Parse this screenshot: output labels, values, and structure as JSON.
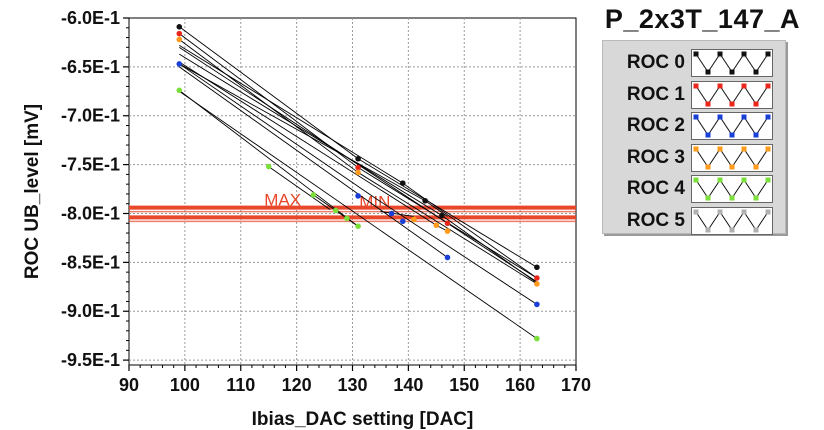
{
  "window": {
    "title": "P_2x3T_147_A"
  },
  "chart_data": {
    "type": "line",
    "title": "P_2x3T_147_A",
    "xlabel": "Ibias_DAC setting [DAC]",
    "ylabel": "ROC UB_level [mV]",
    "xlim": [
      90,
      170
    ],
    "ylim": [
      -0.955,
      -0.6
    ],
    "x_ticks": [
      "90",
      "100",
      "110",
      "120",
      "130",
      "140",
      "150",
      "160",
      "170"
    ],
    "y_ticks": [
      "-6.0E-1",
      "-6.5E-1",
      "-7.0E-1",
      "-7.5E-1",
      "-8.0E-1",
      "-8.5E-1",
      "-9.0E-1",
      "-9.5E-1"
    ],
    "reference_lines": [
      {
        "label": "MAX",
        "y": -0.794,
        "color": "#e8472a"
      },
      {
        "label": "MIN",
        "y": -0.804,
        "color": "#e8472a"
      }
    ],
    "series": [
      {
        "name": "ROC 0",
        "color": "#111111",
        "segments": [
          [
            [
              99,
              -0.609
            ],
            [
              131,
              -0.744
            ]
          ],
          [
            [
              99,
              -0.628
            ],
            [
              139,
              -0.769
            ]
          ],
          [
            [
              99,
              -0.637
            ],
            [
              146,
              -0.802
            ]
          ],
          [
            [
              99,
              -0.647
            ],
            [
              143,
              -0.787
            ]
          ],
          [
            [
              131,
              -0.744
            ],
            [
              163,
              -0.855
            ]
          ],
          [
            [
              139,
              -0.769
            ],
            [
              163,
              -0.866
            ]
          ],
          [
            [
              146,
              -0.802
            ],
            [
              163,
              -0.871
            ]
          ],
          [
            [
              143,
              -0.787
            ],
            [
              147,
              -0.803
            ]
          ]
        ]
      },
      {
        "name": "ROC 1",
        "color": "#e8271a",
        "segments": [
          [
            [
              99,
              -0.616
            ],
            [
              131,
              -0.753
            ]
          ],
          [
            [
              99,
              -0.63
            ],
            [
              147,
              -0.81
            ]
          ],
          [
            [
              131,
              -0.753
            ],
            [
              163,
              -0.866
            ]
          ],
          [
            [
              147,
              -0.81
            ],
            [
              163,
              -0.87
            ]
          ]
        ]
      },
      {
        "name": "ROC 2",
        "color": "#1a3fd8",
        "segments": [
          [
            [
              99,
              -0.647
            ],
            [
              134,
              -0.784
            ]
          ],
          [
            [
              99,
              -0.65
            ],
            [
              147,
              -0.845
            ]
          ],
          [
            [
              134,
              -0.784
            ],
            [
              163,
              -0.893
            ]
          ],
          [
            [
              135,
              -0.798
            ],
            [
              141,
              -0.803
            ]
          ]
        ]
      },
      {
        "name": "ROC 3",
        "color": "#ff9a1a",
        "segments": [
          [
            [
              99,
              -0.622
            ],
            [
              131,
              -0.758
            ]
          ],
          [
            [
              99,
              -0.645
            ],
            [
              145,
              -0.812
            ]
          ],
          [
            [
              131,
              -0.758
            ],
            [
              163,
              -0.872
            ]
          ],
          [
            [
              145,
              -0.812
            ],
            [
              147,
              -0.818
            ]
          ]
        ]
      },
      {
        "name": "ROC 4",
        "color": "#7adf3a",
        "segments": [
          [
            [
              99,
              -0.674
            ],
            [
              131,
              -0.813
            ]
          ],
          [
            [
              99,
              -0.675
            ],
            [
              163,
              -0.928
            ]
          ],
          [
            [
              115,
              -0.752
            ],
            [
              126,
              -0.796
            ]
          ],
          [
            [
              123,
              -0.781
            ],
            [
              131,
              -0.813
            ]
          ]
        ]
      },
      {
        "name": "ROC 5",
        "color": "#b0b0b0",
        "segments": []
      }
    ],
    "points": [
      {
        "series": "ROC 0",
        "xy": [
          [
            99,
            -0.609
          ],
          [
            131,
            -0.744
          ],
          [
            139,
            -0.769
          ],
          [
            143,
            -0.787
          ],
          [
            146,
            -0.802
          ],
          [
            163,
            -0.855
          ]
        ]
      },
      {
        "series": "ROC 1",
        "xy": [
          [
            99,
            -0.616
          ],
          [
            131,
            -0.753
          ],
          [
            147,
            -0.81
          ],
          [
            163,
            -0.866
          ]
        ]
      },
      {
        "series": "ROC 2",
        "xy": [
          [
            99,
            -0.647
          ],
          [
            131,
            -0.782
          ],
          [
            137,
            -0.8
          ],
          [
            139,
            -0.808
          ],
          [
            147,
            -0.845
          ],
          [
            163,
            -0.893
          ]
        ]
      },
      {
        "series": "ROC 3",
        "xy": [
          [
            99,
            -0.622
          ],
          [
            131,
            -0.758
          ],
          [
            141,
            -0.806
          ],
          [
            145,
            -0.812
          ],
          [
            147,
            -0.818
          ],
          [
            163,
            -0.872
          ]
        ]
      },
      {
        "series": "ROC 4",
        "xy": [
          [
            99,
            -0.674
          ],
          [
            115,
            -0.752
          ],
          [
            123,
            -0.781
          ],
          [
            127,
            -0.797
          ],
          [
            129,
            -0.805
          ],
          [
            131,
            -0.813
          ],
          [
            163,
            -0.928
          ]
        ]
      }
    ],
    "legend": {
      "position": "top-right",
      "items": [
        {
          "label": "ROC 0",
          "color": "#111111",
          "marker": "#111111"
        },
        {
          "label": "ROC 1",
          "color": "#111111",
          "marker": "#e8271a"
        },
        {
          "label": "ROC 2",
          "color": "#111111",
          "marker": "#1a3fd8"
        },
        {
          "label": "ROC 3",
          "color": "#111111",
          "marker": "#ff9a1a"
        },
        {
          "label": "ROC 4",
          "color": "#111111",
          "marker": "#7adf3a"
        },
        {
          "label": "ROC 5",
          "color": "#111111",
          "marker": "#b0b0b0"
        }
      ]
    },
    "grid": true
  }
}
